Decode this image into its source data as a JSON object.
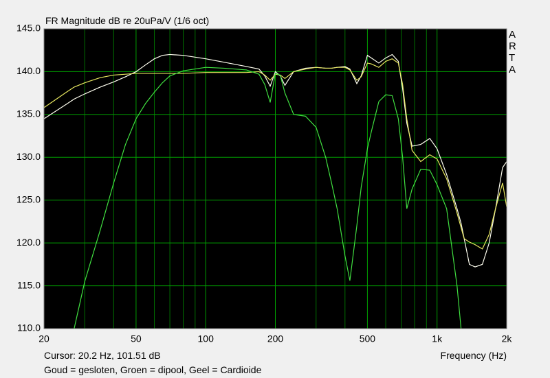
{
  "chart_data": {
    "type": "line",
    "title": "FR Magnitude dB re 20uPa/V (1/6 oct)",
    "brand": "ARTA",
    "cursor": "Cursor: 20.2 Hz, 101.51 dB",
    "x_label": "Frequency (Hz)",
    "legend_text": "Goud = gesloten, Groen = dipool, Geel = Cardioide",
    "x_log": true,
    "grid": true,
    "background": "#000000",
    "grid_color": "#00a000",
    "x": [
      20,
      25,
      27,
      30,
      35,
      40,
      45,
      50,
      55,
      60,
      65,
      70,
      80,
      100,
      120,
      150,
      170,
      180,
      190,
      200,
      210,
      220,
      240,
      270,
      300,
      330,
      350,
      370,
      400,
      420,
      450,
      470,
      500,
      520,
      560,
      600,
      640,
      680,
      710,
      740,
      780,
      850,
      930,
      1000,
      1100,
      1220,
      1270,
      1310,
      1380,
      1460,
      1570,
      1680,
      1790,
      1920,
      2000
    ],
    "series": [
      {
        "color": "#fffff0",
        "values": [
          134.5,
          136.2,
          136.8,
          137.4,
          138.2,
          138.8,
          139.4,
          140.0,
          140.8,
          141.5,
          141.9,
          142.0,
          141.9,
          141.5,
          141.1,
          140.6,
          140.3,
          139.5,
          138.3,
          140.0,
          139.5,
          138.4,
          140.0,
          140.4,
          140.5,
          140.4,
          140.4,
          140.5,
          140.6,
          140.3,
          138.6,
          139.5,
          141.9,
          141.6,
          141.0,
          141.6,
          142.0,
          141.2,
          138.0,
          134.0,
          131.3,
          131.5,
          132.2,
          131.0,
          128.0,
          124.0,
          122.3,
          120.5,
          117.5,
          117.2,
          117.5,
          120.0,
          124.0,
          128.8,
          129.5
        ]
      },
      {
        "color": "#e8e860",
        "values": [
          135.8,
          137.6,
          138.2,
          138.7,
          139.3,
          139.6,
          139.7,
          139.8,
          139.8,
          139.8,
          139.8,
          139.8,
          139.8,
          139.9,
          139.9,
          139.9,
          140.0,
          139.6,
          139.0,
          139.7,
          139.6,
          139.2,
          140.0,
          140.3,
          140.5,
          140.4,
          140.4,
          140.5,
          140.5,
          140.2,
          139.0,
          139.4,
          141.0,
          140.9,
          140.5,
          141.2,
          141.5,
          141.0,
          138.5,
          134.5,
          130.8,
          129.5,
          130.3,
          129.8,
          127.5,
          123.5,
          121.8,
          120.5,
          120.1,
          119.8,
          119.3,
          121.0,
          124.0,
          127.0,
          124.2
        ]
      },
      {
        "color": "#40e040",
        "values": [
          null,
          null,
          110.0,
          115.5,
          121.5,
          127.0,
          131.5,
          134.5,
          136.3,
          137.6,
          138.7,
          139.5,
          140.1,
          140.5,
          140.4,
          140.2,
          139.7,
          138.5,
          136.4,
          139.8,
          139.6,
          137.5,
          135.0,
          134.8,
          133.5,
          130.0,
          127.0,
          124.0,
          118.5,
          115.6,
          122.0,
          126.5,
          131.0,
          133.0,
          136.5,
          137.3,
          137.2,
          134.5,
          130.0,
          124.0,
          126.3,
          128.6,
          128.5,
          126.8,
          124.0,
          115.0,
          110.0,
          null,
          null,
          null,
          null,
          null,
          null,
          null,
          null
        ]
      }
    ],
    "xlim": [
      20,
      2000
    ],
    "xticks": [
      20,
      50,
      100,
      200,
      500,
      {
        "value": 1000,
        "label": "1k"
      },
      {
        "value": 2000,
        "label": "2k"
      }
    ],
    "x_minor_grid": [
      30,
      40,
      60,
      70,
      80,
      90,
      300,
      400,
      600,
      700,
      800,
      900
    ],
    "ylim": [
      110,
      145
    ],
    "yticks": [
      {
        "value": 110,
        "label": "110.0"
      },
      {
        "value": 115,
        "label": "115.0"
      },
      {
        "value": 120,
        "label": "120.0"
      },
      {
        "value": 125,
        "label": "125.0"
      },
      {
        "value": 130,
        "label": "130.0"
      },
      {
        "value": 135,
        "label": "135.0"
      },
      {
        "value": 140,
        "label": "140.0"
      },
      {
        "value": 145,
        "label": "145.0"
      }
    ]
  }
}
